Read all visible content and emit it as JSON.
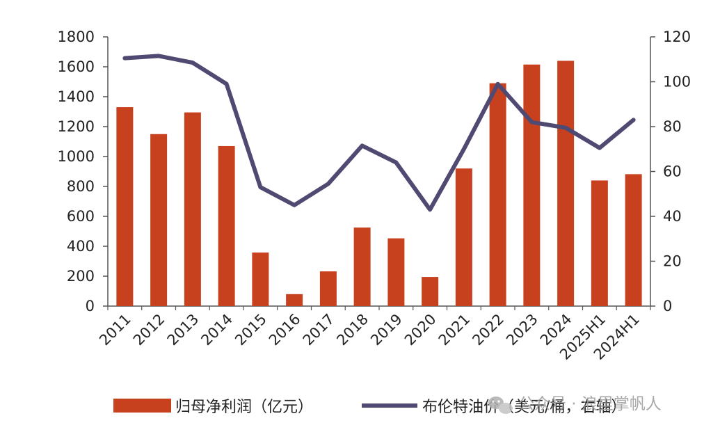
{
  "chart_data": {
    "type": "bar",
    "categories": [
      "2011",
      "2012",
      "2013",
      "2014",
      "2015",
      "2016",
      "2017",
      "2018",
      "2019",
      "2020",
      "2021",
      "2022",
      "2023",
      "2024",
      "2025H1",
      "2024H1"
    ],
    "series": [
      {
        "name": "归母净利润（亿元）",
        "type": "bar",
        "axis": "left",
        "color": "#c8411f",
        "values": [
          1330,
          1150,
          1295,
          1070,
          358,
          80,
          232,
          525,
          453,
          195,
          920,
          1490,
          1615,
          1640,
          840,
          882
        ]
      },
      {
        "name": "布伦特油价（美元/桶，右轴）",
        "type": "line",
        "axis": "right",
        "color": "#504a73",
        "values": [
          110.5,
          111.5,
          108.5,
          99,
          53,
          45,
          54.5,
          71.5,
          64,
          43,
          70,
          99,
          82,
          79.5,
          70.5,
          83
        ]
      }
    ],
    "yleft": {
      "min": 0,
      "max": 1800,
      "ticks": [
        0,
        200,
        400,
        600,
        800,
        1000,
        1200,
        1400,
        1600,
        1800
      ]
    },
    "yright": {
      "min": 0,
      "max": 120,
      "ticks": [
        0,
        20,
        40,
        60,
        80,
        100,
        120
      ]
    },
    "legend": "bottom",
    "grid": false
  },
  "legend": {
    "bar_label": "归母净利润（亿元）",
    "line_label": "布伦特油价（美元/桶，右轴）"
  },
  "watermark": {
    "text": "公众号 · 浪里掌帆人",
    "icon": "wechat-icon"
  }
}
